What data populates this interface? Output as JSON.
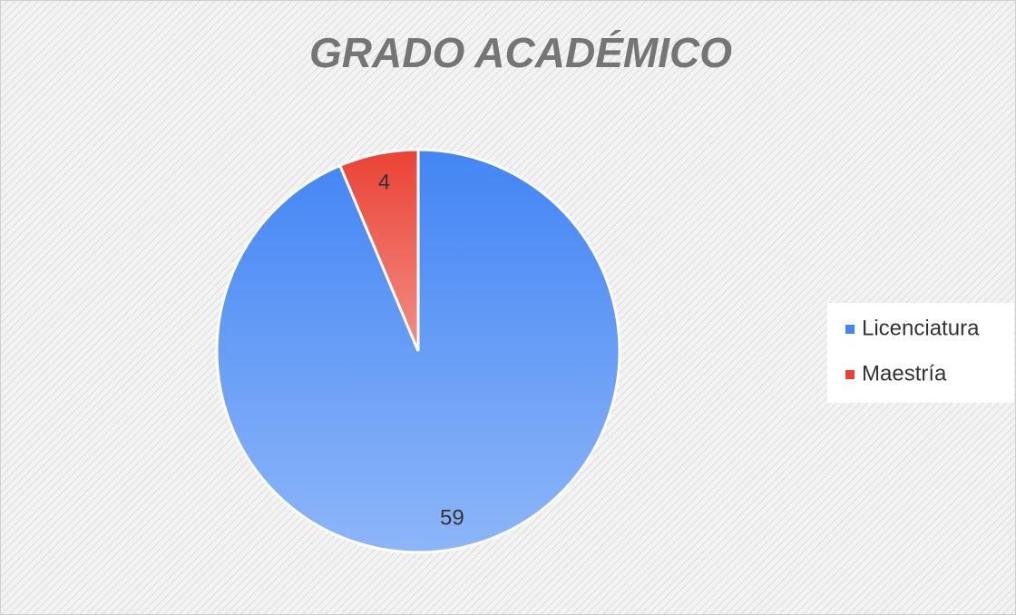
{
  "chart_data": {
    "type": "pie",
    "title": "GRADO ACADÉMICO",
    "categories": [
      "Licenciatura",
      "Maestría"
    ],
    "values": [
      59,
      4
    ],
    "colors": [
      "#4285f4",
      "#ea4335"
    ],
    "legend": "right"
  }
}
